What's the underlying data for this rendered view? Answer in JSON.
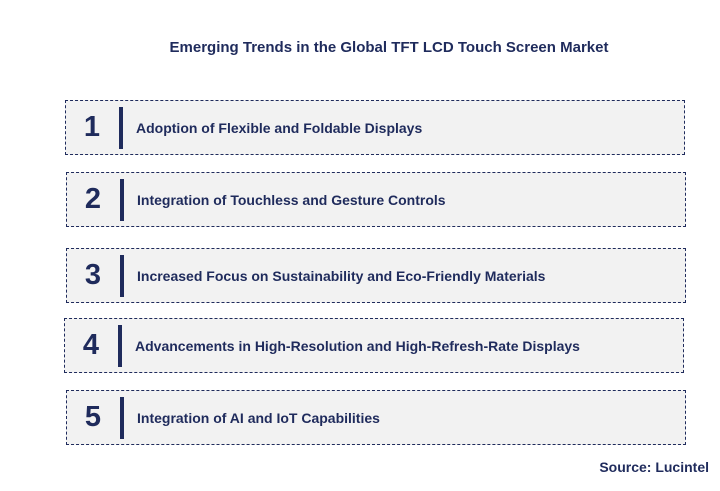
{
  "title": "Emerging Trends in the Global TFT LCD Touch Screen Market",
  "trends": [
    {
      "number": "1",
      "text": "Adoption of Flexible and Foldable Displays"
    },
    {
      "number": "2",
      "text": "Integration of Touchless and Gesture Controls"
    },
    {
      "number": "3",
      "text": "Increased Focus on Sustainability and Eco-Friendly Materials"
    },
    {
      "number": "4",
      "text": "Advancements in High-Resolution and High-Refresh-Rate Displays"
    },
    {
      "number": "5",
      "text": "Integration of AI and IoT Capabilities"
    }
  ],
  "source": "Source: Lucintel",
  "colors": {
    "primary": "#1f2b5c",
    "box_background": "#f2f2f2"
  }
}
